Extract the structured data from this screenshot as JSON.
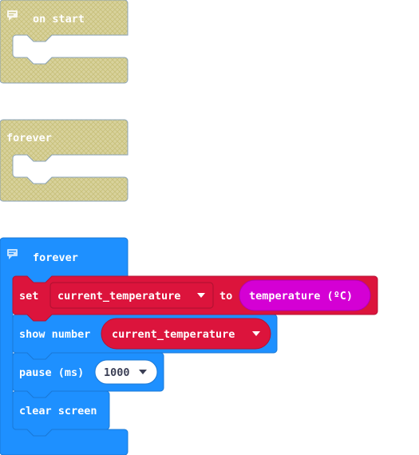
{
  "colors": {
    "disabled_fill": "#d6d09a",
    "disabled_border": "#8aa3b8",
    "basic_blue": "#1e90ff",
    "basic_blue_dark": "#1a78d6",
    "variable_red": "#dc143c",
    "variable_red_dark": "#b51232",
    "input_magenta": "#d400d4",
    "input_magenta_dark": "#b000b0",
    "number_bg": "#ffffff"
  },
  "workspace": {
    "block_on_start": {
      "label": "on start",
      "comment_icon": "comment-icon",
      "disabled": true
    },
    "block_forever_disabled": {
      "label": "forever",
      "disabled": true
    },
    "block_forever": {
      "label": "forever",
      "comment_icon": "comment-icon",
      "statements": {
        "set": {
          "keyword": "set",
          "variable": "current_temperature",
          "to_label": "to",
          "value": "temperature (ºC)"
        },
        "show_number": {
          "keyword": "show number",
          "variable": "current_temperature"
        },
        "pause": {
          "keyword": "pause (ms)",
          "value": "1000"
        },
        "clear_screen": {
          "keyword": "clear screen"
        }
      }
    }
  },
  "icons": {
    "dropdown": "dropdown-arrow-icon",
    "comment": "comment-icon"
  }
}
